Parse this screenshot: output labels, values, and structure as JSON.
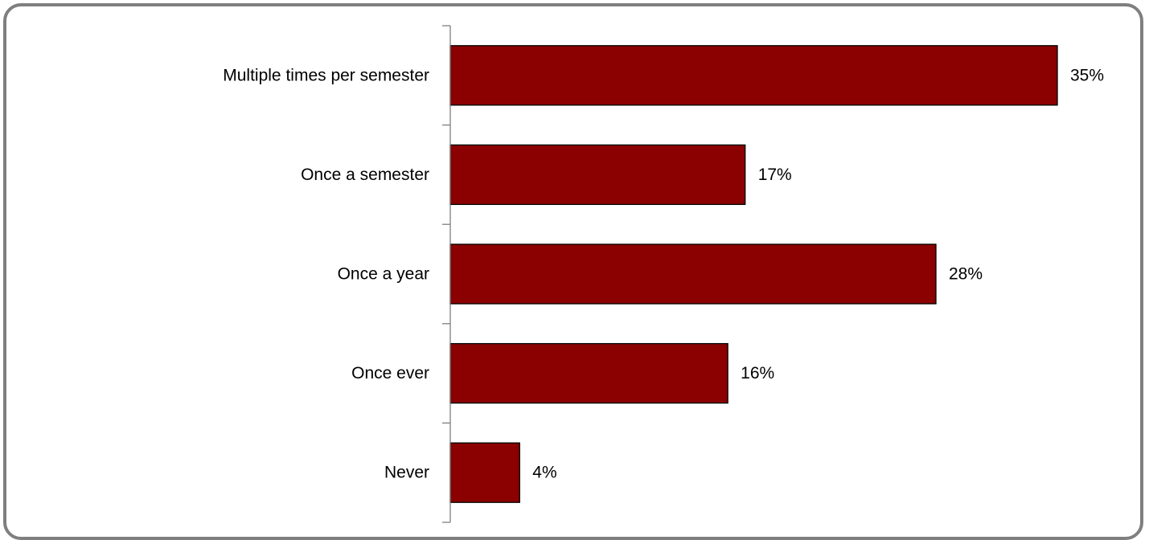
{
  "chart_data": {
    "type": "bar",
    "orientation": "horizontal",
    "categories": [
      "Multiple times per semester",
      "Once a semester",
      "Once a year",
      "Once ever",
      "Never"
    ],
    "values": [
      35,
      17,
      28,
      16,
      4
    ],
    "value_labels": [
      "35%",
      "17%",
      "28%",
      "16%",
      "4%"
    ],
    "unit": "%",
    "title": "",
    "xlabel": "",
    "ylabel": "",
    "xlim": [
      0,
      35
    ],
    "grid": false,
    "legend": "none",
    "bar_color": "#8b0000",
    "bar_edge_color": "#000000"
  }
}
